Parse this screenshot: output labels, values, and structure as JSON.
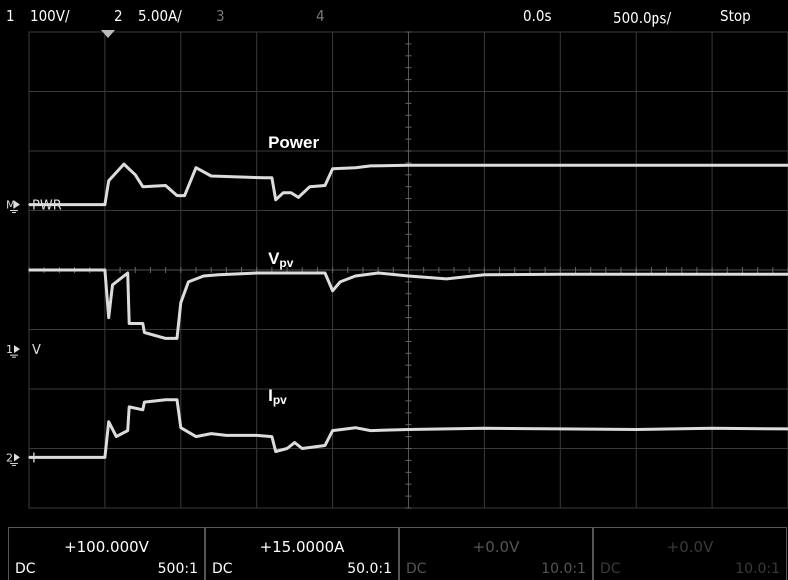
{
  "topbar": {
    "ch1_num": "1",
    "ch1_scale": "100V/",
    "ch2_num": "2",
    "ch2_scale": "5.00A/",
    "ch3_num": "3",
    "ch4_num": "4",
    "delay": "0.0s",
    "timebase": "500.0㎰/",
    "run_state": "Stop"
  },
  "markers": {
    "pwr": "PWR",
    "v": "V",
    "i": "I",
    "ch1": "1",
    "ch2": "2",
    "math": "M"
  },
  "bottombar": [
    {
      "value": "+100.000V",
      "coupling": "DC",
      "probe": "500:1",
      "active": true
    },
    {
      "value": "+15.0000A",
      "coupling": "DC",
      "probe": "50.0:1",
      "active": true
    },
    {
      "value": "+0.0V",
      "coupling": "DC",
      "probe": "10.0:1",
      "active": false
    },
    {
      "value": "+0.0V",
      "coupling": "DC",
      "probe": "10.0:1",
      "active": false
    }
  ],
  "colors": {
    "trace": "#dcdcdc",
    "grid": "#3a3a3a",
    "background": "#000000"
  },
  "chart_data": {
    "type": "line",
    "grid": true,
    "x_divisions": 10,
    "y_divisions": 8,
    "x_unit": "div",
    "y_unit": "div",
    "xlim": [
      0,
      10
    ],
    "ylim": [
      0,
      8
    ],
    "annotations": [
      {
        "text": "Power",
        "sub": "",
        "x": 3.15,
        "y": 6.05
      },
      {
        "text": "V",
        "sub": "pv",
        "x": 3.15,
        "y": 4.1
      },
      {
        "text": "I",
        "sub": "pv",
        "x": 3.15,
        "y": 1.8
      }
    ],
    "series": [
      {
        "label": "Power",
        "x": [
          0.0,
          1.0,
          1.05,
          1.25,
          1.4,
          1.5,
          1.8,
          1.95,
          2.05,
          2.2,
          2.4,
          3.1,
          3.2,
          3.25,
          3.35,
          3.45,
          3.55,
          3.7,
          3.9,
          4.0,
          4.3,
          4.5,
          5.0,
          6.0,
          7.0,
          8.0,
          9.0,
          10.0
        ],
        "y": [
          5.1,
          5.1,
          5.5,
          5.78,
          5.6,
          5.4,
          5.42,
          5.25,
          5.25,
          5.72,
          5.58,
          5.55,
          5.55,
          5.18,
          5.3,
          5.3,
          5.22,
          5.4,
          5.42,
          5.7,
          5.72,
          5.75,
          5.76,
          5.76,
          5.76,
          5.76,
          5.76,
          5.76
        ]
      },
      {
        "label": "V",
        "x": [
          0.0,
          1.0,
          1.05,
          1.1,
          1.3,
          1.32,
          1.5,
          1.52,
          1.8,
          1.95,
          2.0,
          2.1,
          2.3,
          2.5,
          3.0,
          3.9,
          4.0,
          4.1,
          4.3,
          4.6,
          5.0,
          5.5,
          6.0,
          7.0,
          8.0,
          9.0,
          10.0
        ],
        "y": [
          4.0,
          4.0,
          3.2,
          3.75,
          3.95,
          3.1,
          3.1,
          2.95,
          2.85,
          2.85,
          3.45,
          3.8,
          3.9,
          3.92,
          3.95,
          3.95,
          3.65,
          3.8,
          3.9,
          3.95,
          3.9,
          3.85,
          3.92,
          3.93,
          3.93,
          3.93,
          3.93
        ]
      },
      {
        "label": "I",
        "x": [
          0.0,
          1.0,
          1.05,
          1.15,
          1.3,
          1.32,
          1.5,
          1.52,
          1.8,
          1.95,
          2.0,
          2.2,
          2.4,
          2.6,
          3.0,
          3.2,
          3.25,
          3.4,
          3.5,
          3.6,
          3.9,
          4.0,
          4.3,
          4.5,
          5.0,
          6.0,
          7.0,
          8.0,
          9.0,
          10.0
        ],
        "y": [
          0.85,
          0.85,
          1.45,
          1.2,
          1.3,
          1.7,
          1.65,
          1.78,
          1.82,
          1.82,
          1.35,
          1.2,
          1.25,
          1.22,
          1.22,
          1.2,
          0.95,
          1.0,
          1.1,
          1.0,
          1.05,
          1.3,
          1.35,
          1.3,
          1.32,
          1.34,
          1.33,
          1.32,
          1.34,
          1.33
        ]
      }
    ]
  }
}
